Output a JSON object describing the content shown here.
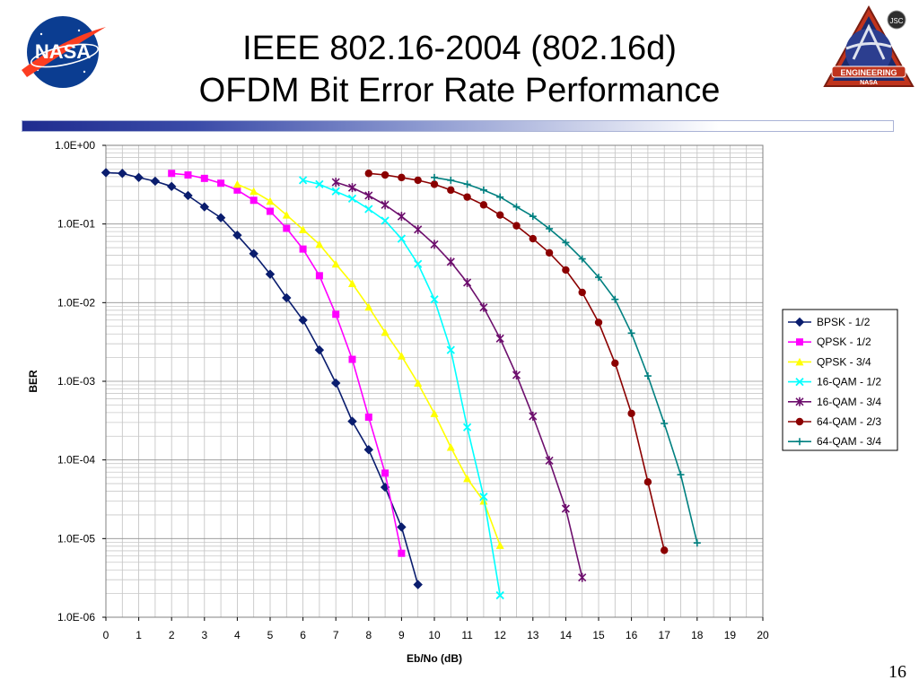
{
  "slide": {
    "title_line1": "IEEE 802.16-2004 (802.16d)",
    "title_line2": "OFDM Bit Error Rate Performance",
    "page_number": "16",
    "left_logo_text": "NASA",
    "right_logo_text": [
      "JSC",
      "ENGINEERING",
      "NASA"
    ]
  },
  "chart_data": {
    "type": "line",
    "title": "",
    "xlabel": "Eb/No (dB)",
    "ylabel": "BER",
    "xlim": [
      0,
      20
    ],
    "ylim": [
      1e-06,
      1
    ],
    "yscale": "log",
    "grid": true,
    "legend": "right",
    "x_ticks": [
      "0",
      "1",
      "2",
      "3",
      "4",
      "5",
      "6",
      "7",
      "8",
      "9",
      "10",
      "11",
      "12",
      "13",
      "14",
      "15",
      "16",
      "17",
      "18",
      "19",
      "20"
    ],
    "y_ticks": [
      "1.0E+00",
      "1.0E-01",
      "1.0E-02",
      "1.0E-03",
      "1.0E-04",
      "1.0E-05",
      "1.0E-06"
    ],
    "series": [
      {
        "name": "BPSK - 1/2",
        "color": "#0a1d6e",
        "marker": "diamond",
        "x": [
          0,
          0.5,
          1,
          1.5,
          2,
          2.5,
          3,
          3.5,
          4,
          4.5,
          5,
          5.5,
          6,
          6.5,
          7,
          7.5,
          8,
          8.5,
          9,
          9.5
        ],
        "y": [
          0.45,
          0.44,
          0.39,
          0.35,
          0.3,
          0.23,
          0.165,
          0.12,
          0.072,
          0.042,
          0.023,
          0.0115,
          0.006,
          0.0025,
          0.00095,
          0.00031,
          0.000135,
          4.5e-05,
          1.4e-05,
          2.6e-06
        ]
      },
      {
        "name": "QPSK - 1/2",
        "color": "#ff00ff",
        "marker": "square",
        "x": [
          2,
          2.5,
          3,
          3.5,
          4,
          4.5,
          5,
          5.5,
          6,
          6.5,
          7,
          7.5,
          8,
          8.5,
          9
        ],
        "y": [
          0.44,
          0.42,
          0.38,
          0.33,
          0.27,
          0.2,
          0.145,
          0.088,
          0.048,
          0.022,
          0.0071,
          0.0019,
          0.00035,
          6.8e-05,
          6.5e-06
        ]
      },
      {
        "name": "QPSK - 3/4",
        "color": "#ffff00",
        "marker": "triangle",
        "x": [
          4,
          4.5,
          5,
          5.5,
          6,
          6.5,
          7,
          7.5,
          8,
          8.5,
          9,
          9.5,
          10,
          10.5,
          11,
          11.5,
          12
        ],
        "y": [
          0.32,
          0.26,
          0.195,
          0.13,
          0.085,
          0.055,
          0.031,
          0.0175,
          0.0088,
          0.0042,
          0.0021,
          0.00095,
          0.00039,
          0.000145,
          5.8e-05,
          3e-05,
          8.2e-06
        ]
      },
      {
        "name": "16-QAM - 1/2",
        "color": "#00ffff",
        "marker": "x",
        "x": [
          6,
          6.5,
          7,
          7.5,
          8,
          8.5,
          9,
          9.5,
          10,
          10.5,
          11,
          11.5,
          12
        ],
        "y": [
          0.36,
          0.32,
          0.26,
          0.21,
          0.155,
          0.11,
          0.065,
          0.031,
          0.011,
          0.0025,
          0.00026,
          3.4e-05,
          1.9e-06
        ]
      },
      {
        "name": "16-QAM - 3/4",
        "color": "#6d0f6d",
        "marker": "star",
        "x": [
          7,
          7.5,
          8,
          8.5,
          9,
          9.5,
          10,
          10.5,
          11,
          11.5,
          12,
          12.5,
          13,
          13.5,
          14,
          14.5
        ],
        "y": [
          0.34,
          0.29,
          0.23,
          0.175,
          0.125,
          0.085,
          0.055,
          0.033,
          0.018,
          0.0087,
          0.0035,
          0.0012,
          0.00036,
          9.8e-05,
          2.4e-05,
          3.2e-06
        ]
      },
      {
        "name": "64-QAM - 2/3",
        "color": "#8b0000",
        "marker": "circle",
        "x": [
          8,
          8.5,
          9,
          9.5,
          10,
          10.5,
          11,
          11.5,
          12,
          12.5,
          13,
          13.5,
          14,
          14.5,
          15,
          15.5,
          16,
          16.5,
          17
        ],
        "y": [
          0.44,
          0.42,
          0.39,
          0.36,
          0.32,
          0.27,
          0.22,
          0.175,
          0.13,
          0.095,
          0.065,
          0.043,
          0.026,
          0.0135,
          0.0056,
          0.0017,
          0.00039,
          5.25e-05,
          7.1e-06
        ]
      },
      {
        "name": "64-QAM - 3/4",
        "color": "#008080",
        "marker": "plus",
        "x": [
          10,
          10.5,
          11,
          11.5,
          12,
          12.5,
          13,
          13.5,
          14,
          14.5,
          15,
          15.5,
          16,
          16.5,
          17,
          17.5,
          18
        ],
        "y": [
          0.39,
          0.36,
          0.32,
          0.27,
          0.22,
          0.165,
          0.125,
          0.087,
          0.058,
          0.036,
          0.021,
          0.011,
          0.0041,
          0.00117,
          0.00029,
          6.5e-05,
          8.8e-06
        ]
      }
    ]
  }
}
